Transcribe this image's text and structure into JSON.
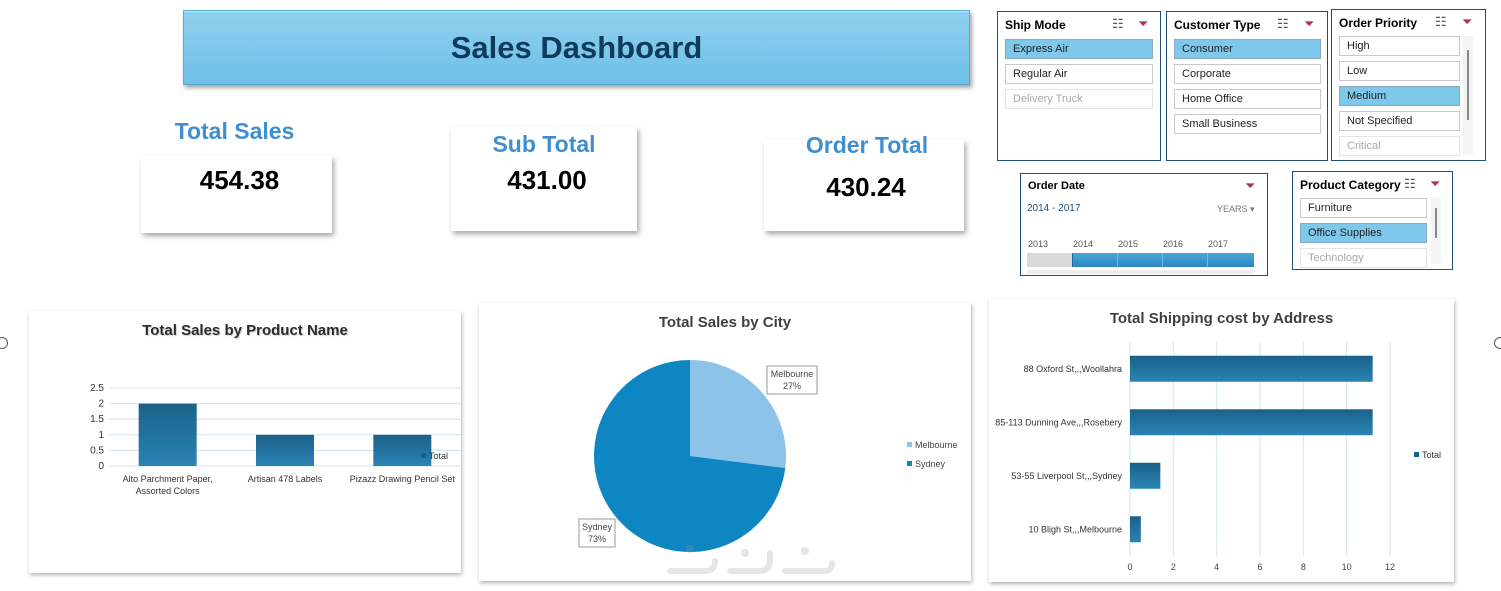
{
  "header": {
    "title": "Sales Dashboard"
  },
  "kpis": [
    {
      "label": "Total Sales",
      "value": "454.38"
    },
    {
      "label": "Sub Total",
      "value": "431.00"
    },
    {
      "label": "Order Total",
      "value": "430.24"
    }
  ],
  "slicers": {
    "ship_mode": {
      "title": "Ship Mode",
      "items": [
        "Express Air",
        "Regular Air",
        "Delivery Truck"
      ]
    },
    "customer_type": {
      "title": "Customer Type",
      "items": [
        "Consumer",
        "Corporate",
        "Home Office",
        "Small Business"
      ]
    },
    "order_priority": {
      "title": "Order Priority",
      "items": [
        "High",
        "Low",
        "Medium",
        "Not Specified",
        "Critical"
      ]
    },
    "product_category": {
      "title": "Product Category",
      "items": [
        "Furniture",
        "Office Supplies",
        "Technology"
      ]
    },
    "order_date": {
      "title": "Order Date",
      "range": "2014 - 2017",
      "level": "YEARS",
      "years": [
        "2013",
        "2014",
        "2015",
        "2016",
        "2017"
      ]
    }
  },
  "icons": {
    "multiselect": "multi-select-icon",
    "clear": "clear-filter-icon",
    "dropdown": "chevron-down-icon"
  },
  "colors": {
    "bar": "#1a6188",
    "pie_melbourne": "#8dc3e8",
    "pie_sydney": "#0e86c2",
    "selected": "#7ec8eb",
    "title_banner": "#80c9ec"
  },
  "chart_data": [
    {
      "type": "bar",
      "title": "Total Sales by Product Name",
      "categories": [
        "Alto Parchment Paper, Assorted Colors",
        "Artisan 478 Labels",
        "Pizazz Drawing Pencil Set"
      ],
      "category_lines": [
        [
          "Alto Parchment Paper,",
          "Assorted Colors"
        ],
        [
          "Artisan 478 Labels"
        ],
        [
          "Pizazz Drawing Pencil Set"
        ]
      ],
      "series": [
        {
          "name": "Total",
          "values": [
            2,
            1,
            1
          ]
        }
      ],
      "yticks": [
        "0",
        "0.5",
        "1",
        "1.5",
        "2",
        "2.5"
      ],
      "ylim": [
        0,
        2.5
      ]
    },
    {
      "type": "pie",
      "title": "Total Sales by City",
      "labels": [
        "Melbourne",
        "Sydney"
      ],
      "values": [
        27,
        73
      ],
      "value_labels": [
        "27%",
        "73%"
      ]
    },
    {
      "type": "bar",
      "orientation": "horizontal",
      "title": "Total Shipping cost by Address",
      "categories": [
        "88 Oxford St,,,Woollahra",
        "85-113 Dunning Ave,,,Rosebery",
        "53-55 Liverpool St,,,Sydney",
        "10 Bligh St,,,Melbourne"
      ],
      "series": [
        {
          "name": "Total",
          "values": [
            11.2,
            11.2,
            1.4,
            0.5
          ]
        }
      ],
      "xticks": [
        "0",
        "2",
        "4",
        "6",
        "8",
        "10",
        "12"
      ],
      "xlim": [
        0,
        13
      ]
    }
  ]
}
